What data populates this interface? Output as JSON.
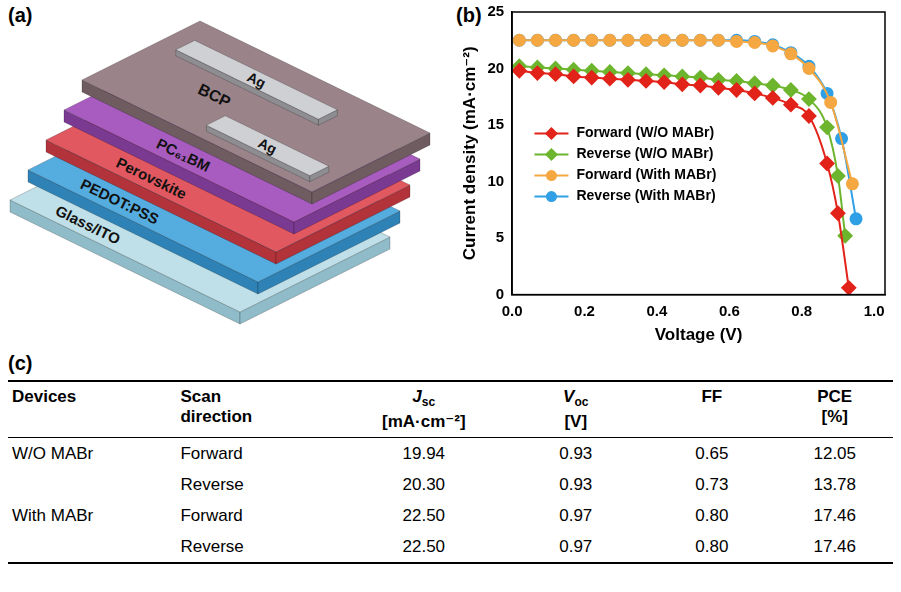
{
  "diagram": {
    "panel_label": "(a)",
    "layers": [
      "Glass/ITO",
      "PEDOT:PSS",
      "Perovskite",
      "PC₆₁BM",
      "BCP"
    ],
    "electrodes": [
      "Ag",
      "Ag"
    ]
  },
  "chart_data": {
    "panel_label": "(b)",
    "type": "line",
    "x_label": "Voltage (V)",
    "y_label": "Current density (mA·cm⁻²)",
    "xlim": [
      0,
      1.03
    ],
    "xticks": [
      {
        "value": 0,
        "label": "0.0"
      },
      {
        "value": 0.2,
        "label": "0.2"
      },
      {
        "value": 0.4,
        "label": "0.4"
      },
      {
        "value": 0.6,
        "label": "0.6"
      },
      {
        "value": 0.8,
        "label": "0.8"
      },
      {
        "value": 1.0,
        "label": "1.0"
      }
    ],
    "ylim": [
      0,
      25
    ],
    "yticks": [
      0,
      5,
      10,
      15,
      20,
      25
    ],
    "grid": false,
    "legend": "left",
    "series": [
      {
        "name": "Forward (W/O MABr)",
        "color": "#e2231a",
        "marker": "diamond",
        "x": [
          0.02,
          0.07,
          0.12,
          0.17,
          0.22,
          0.27,
          0.32,
          0.37,
          0.42,
          0.47,
          0.52,
          0.57,
          0.62,
          0.67,
          0.72,
          0.77,
          0.82,
          0.87,
          0.9,
          0.93
        ],
        "values": [
          19.8,
          19.6,
          19.5,
          19.3,
          19.2,
          19.1,
          19.0,
          18.9,
          18.8,
          18.6,
          18.5,
          18.3,
          18.1,
          17.8,
          17.4,
          16.8,
          15.8,
          11.6,
          7.2,
          0.6
        ]
      },
      {
        "name": "Reverse (W/O MABr)",
        "color": "#6cb52d",
        "marker": "diamond",
        "x": [
          0.02,
          0.07,
          0.12,
          0.17,
          0.22,
          0.27,
          0.32,
          0.37,
          0.42,
          0.47,
          0.52,
          0.57,
          0.62,
          0.67,
          0.72,
          0.77,
          0.82,
          0.87,
          0.9,
          0.92
        ],
        "values": [
          20.2,
          20.1,
          20.0,
          19.9,
          19.8,
          19.7,
          19.6,
          19.5,
          19.4,
          19.3,
          19.2,
          19.0,
          18.9,
          18.7,
          18.5,
          18.1,
          17.3,
          14.8,
          10.5,
          5.2
        ]
      },
      {
        "name": "Forward (With MABr)",
        "color": "#f5a742",
        "marker": "circle",
        "x": [
          0.02,
          0.07,
          0.12,
          0.17,
          0.22,
          0.27,
          0.32,
          0.37,
          0.42,
          0.47,
          0.52,
          0.57,
          0.62,
          0.67,
          0.72,
          0.77,
          0.82,
          0.88,
          0.94
        ],
        "values": [
          22.5,
          22.5,
          22.5,
          22.5,
          22.5,
          22.5,
          22.5,
          22.5,
          22.5,
          22.5,
          22.5,
          22.5,
          22.4,
          22.3,
          22.0,
          21.3,
          20.0,
          17.0,
          9.8
        ]
      },
      {
        "name": "Reverse (With MABr)",
        "color": "#2f9fe6",
        "marker": "circle",
        "x": [
          0.02,
          0.07,
          0.12,
          0.17,
          0.22,
          0.27,
          0.32,
          0.37,
          0.42,
          0.47,
          0.52,
          0.57,
          0.62,
          0.67,
          0.72,
          0.77,
          0.82,
          0.87,
          0.91,
          0.95
        ],
        "values": [
          22.5,
          22.5,
          22.5,
          22.5,
          22.5,
          22.5,
          22.5,
          22.5,
          22.5,
          22.5,
          22.5,
          22.5,
          22.5,
          22.4,
          22.1,
          21.4,
          20.2,
          17.8,
          13.8,
          6.7
        ]
      }
    ]
  },
  "table": {
    "panel_label": "(c)",
    "columns": [
      {
        "text": "Devices"
      },
      {
        "text": "Scan direction"
      },
      {
        "symbol": "J",
        "subscript": "sc",
        "unit": "[mA·cm⁻²]"
      },
      {
        "symbol": "V",
        "subscript": "oc",
        "unit": "[V]"
      },
      {
        "text": "FF"
      },
      {
        "text": "PCE",
        "unit": "[%]"
      }
    ],
    "rows": [
      [
        "W/O MABr",
        "Forward",
        "19.94",
        "0.93",
        "0.65",
        "12.05"
      ],
      [
        null,
        "Reverse",
        "20.30",
        "0.93",
        "0.73",
        "13.78"
      ],
      [
        "With MABr",
        "Forward",
        "22.50",
        "0.97",
        "0.80",
        "17.46"
      ],
      [
        null,
        "Reverse",
        "22.50",
        "0.97",
        "0.80",
        "17.46"
      ]
    ]
  }
}
